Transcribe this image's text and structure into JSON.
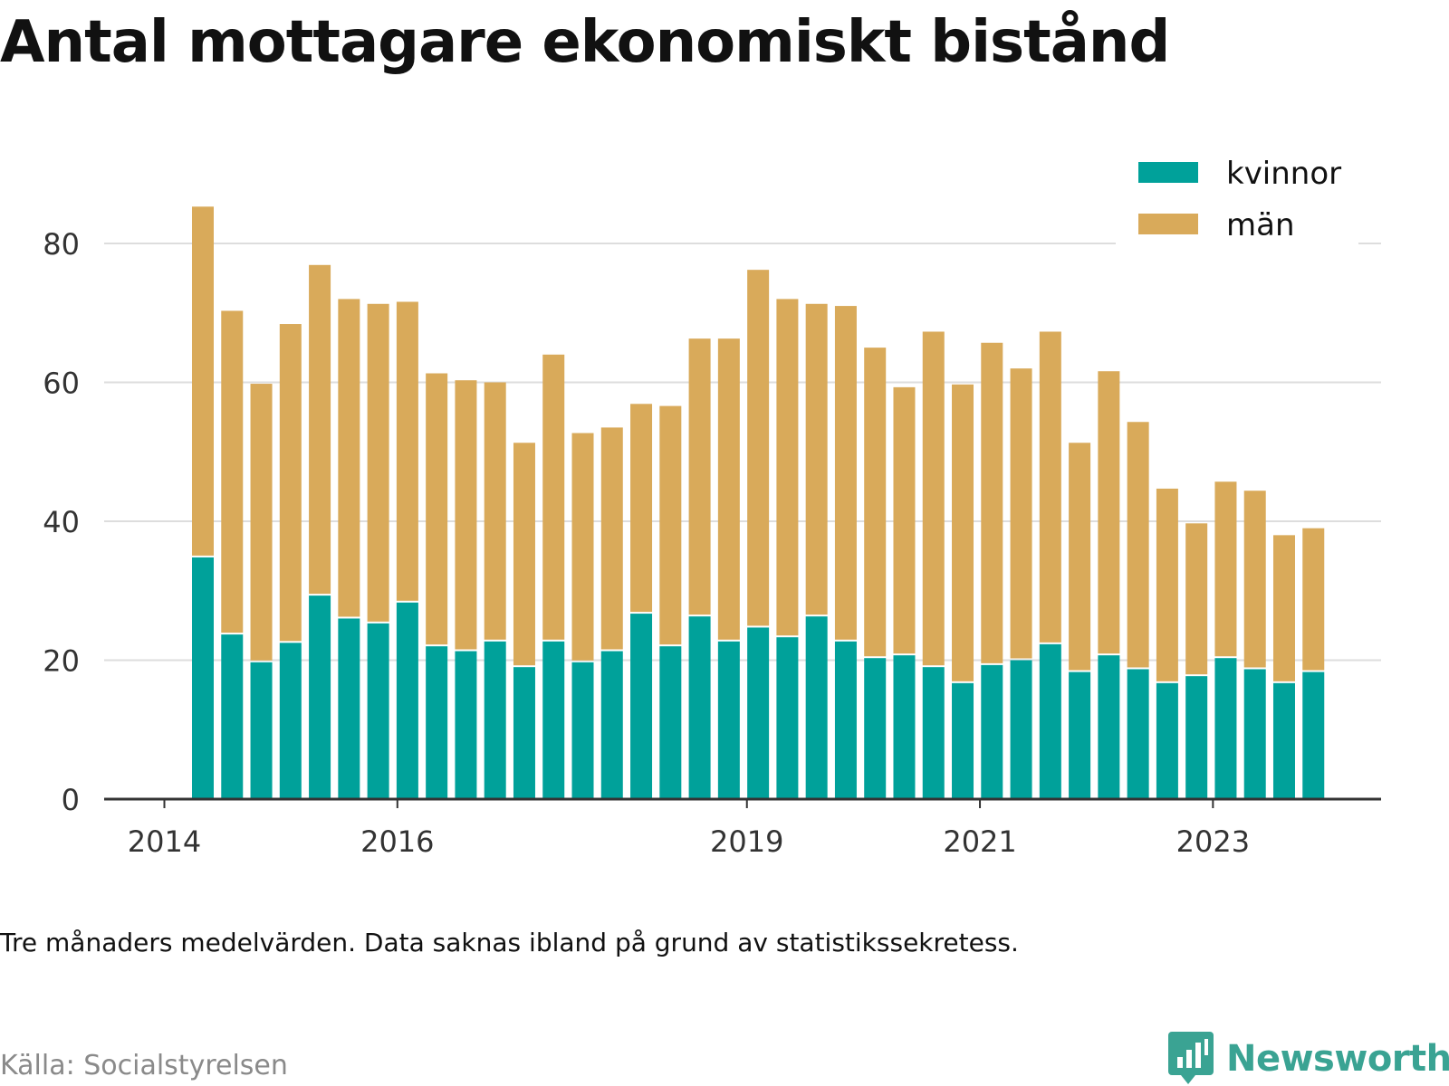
{
  "title": "Antal mottagare ekonomiskt bistånd",
  "footnote": "Tre månaders medelvärden. Data saknas ibland på grund av statistikssekretess.",
  "source": "Källa: Socialstyrelsen",
  "brand": "Newsworthy",
  "colors": {
    "kvinnor": "#00a19a",
    "man": "#d9aa5a",
    "grid": "#dddddd",
    "axis": "#333333",
    "brand": "#3aa393"
  },
  "chart_data": {
    "type": "bar",
    "stacked": true,
    "title": "Antal mottagare ekonomiskt bistånd",
    "x_ticks": [
      "2014",
      "2016",
      "2019",
      "2021",
      "2023"
    ],
    "y_ticks": [
      0,
      20,
      40,
      60,
      80
    ],
    "ylim": [
      0,
      90
    ],
    "grid": true,
    "legend_position": "top-right",
    "series": [
      {
        "name": "kvinnor",
        "color": "#00a19a",
        "values": [
          34.8,
          23.7,
          19.7,
          22.5,
          29.3,
          26.0,
          25.3,
          28.3,
          22.0,
          21.3,
          22.7,
          19.0,
          22.7,
          19.7,
          21.3,
          26.7,
          22.0,
          26.3,
          22.7,
          24.7,
          23.3,
          26.3,
          22.7,
          20.3,
          20.7,
          19.0,
          16.7,
          19.3,
          20.0,
          22.3,
          18.3,
          20.7,
          18.7,
          16.7,
          17.7,
          20.3,
          18.7,
          16.7,
          18.3
        ]
      },
      {
        "name": "män",
        "color": "#d9aa5a",
        "values": [
          50.5,
          46.6,
          40.1,
          45.9,
          47.6,
          46.0,
          46.0,
          43.3,
          39.3,
          39.0,
          37.3,
          32.3,
          41.3,
          33.0,
          32.2,
          30.2,
          34.6,
          40.0,
          43.6,
          51.5,
          48.7,
          45.0,
          48.3,
          44.7,
          38.6,
          48.3,
          43.0,
          46.4,
          42.0,
          45.0,
          33.0,
          40.9,
          35.6,
          28.0,
          22.0,
          25.4,
          25.7,
          21.3,
          20.7
        ]
      }
    ]
  }
}
